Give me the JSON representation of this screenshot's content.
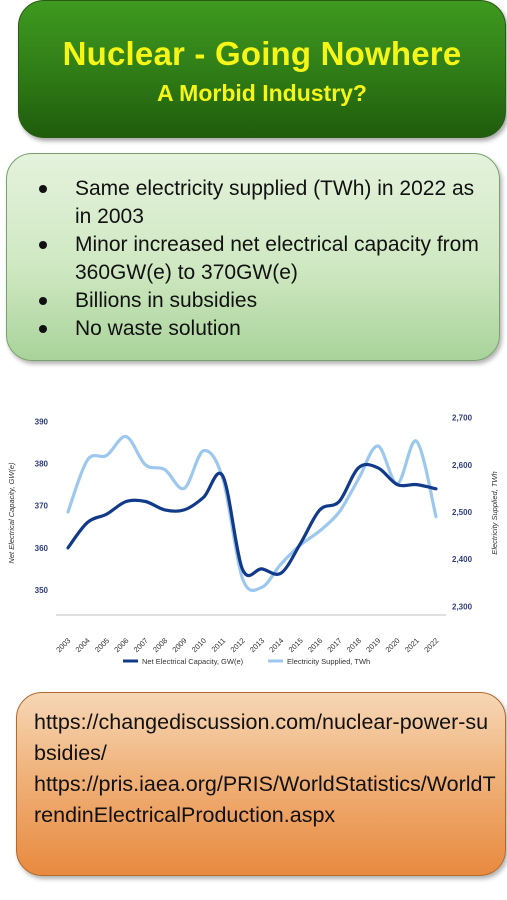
{
  "title": {
    "main": "Nuclear - Going Nowhere",
    "sub": "A Morbid Industry?"
  },
  "bullets": [
    "Same electricity supplied (TWh) in 2022 as in 2003",
    "Minor increased net electrical capacity from 360GW(e) to 370GW(e)",
    "Billions in subsidies",
    "No waste solution"
  ],
  "sources": [
    "https://changediscussion.com/nuclear-power-subsidies/",
    "https://pris.iaea.org/PRIS/WorldStatistics/WorldTrendinElectricalProduction.aspx"
  ],
  "colors": {
    "capacity": "#123a8a",
    "supplied": "#9dc8ee",
    "tick": "#2e3e7a"
  },
  "chart_data": {
    "type": "line",
    "x": [
      "2003",
      "2004",
      "2005",
      "2006",
      "2007",
      "2008",
      "2009",
      "2010",
      "2011",
      "2012",
      "2013",
      "2014",
      "2015",
      "2016",
      "2017",
      "2018",
      "2019",
      "2020",
      "2021",
      "2022"
    ],
    "series": [
      {
        "name": "Net Electrical Capacity, GW(e)",
        "axis": "left",
        "values": [
          360,
          366,
          368,
          371,
          371,
          369,
          369,
          372,
          377,
          355,
          355,
          354,
          361,
          369,
          371,
          379,
          379,
          375,
          375,
          374
        ]
      },
      {
        "name": "Electricity Supplied, TWh",
        "axis": "right",
        "values": [
          2500,
          2610,
          2620,
          2660,
          2600,
          2590,
          2550,
          2630,
          2570,
          2360,
          2340,
          2390,
          2430,
          2460,
          2500,
          2570,
          2640,
          2560,
          2650,
          2490
        ]
      }
    ],
    "ylabel": "Net Electrical Capacity, GW(e)",
    "y2label": "Electricity Supplied, TWh",
    "ylim": [
      345,
      392
    ],
    "y2lim": [
      2290,
      2710
    ],
    "yticks": [
      "350",
      "360",
      "370",
      "380",
      "390"
    ],
    "y2ticks": [
      "2,300",
      "2,400",
      "2,500",
      "2,600",
      "2,700"
    ],
    "grid": false,
    "legend": "bottom"
  }
}
